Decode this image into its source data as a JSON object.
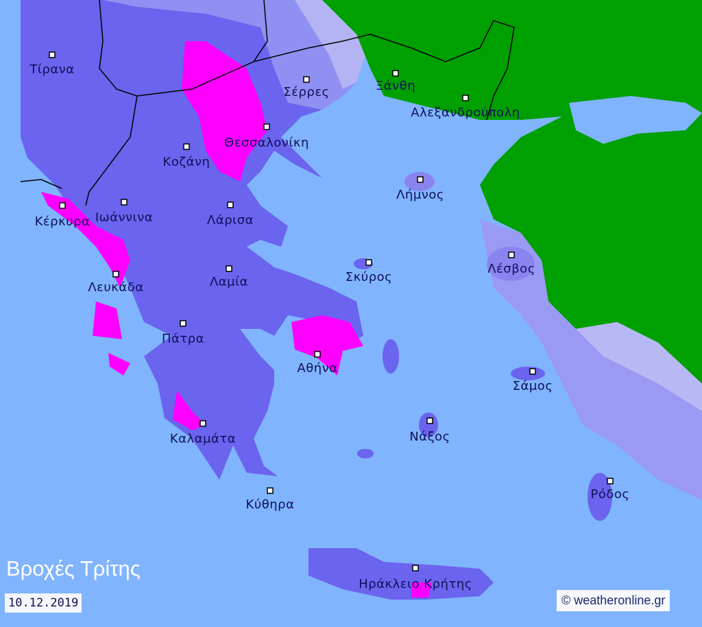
{
  "map": {
    "title": "Βροχές Τρίτης",
    "date": "10.12.2019",
    "credit": "© weatheronline.gr",
    "colors": {
      "sea": "#80b4fe",
      "rain_light": "#9a9af4",
      "rain_moderate": "#6a64ee",
      "rain_heavy": "#ff00ff",
      "outside_area": "#00a000"
    },
    "cities": [
      {
        "name": "Τίρανα"
      },
      {
        "name": "Σέρρες"
      },
      {
        "name": "Ξάνθη"
      },
      {
        "name": "Αλεξανδρούπολη"
      },
      {
        "name": "Θεσσαλονίκη"
      },
      {
        "name": "Κοζάνη"
      },
      {
        "name": "Λήμνος"
      },
      {
        "name": "Κέρκυρα"
      },
      {
        "name": "Ιωάννινα"
      },
      {
        "name": "Λάρισα"
      },
      {
        "name": "Λέσβος"
      },
      {
        "name": "Σκύρος"
      },
      {
        "name": "Λευκάδα"
      },
      {
        "name": "Λαμία"
      },
      {
        "name": "Πάτρα"
      },
      {
        "name": "Αθήνα"
      },
      {
        "name": "Σάμος"
      },
      {
        "name": "Νάξος"
      },
      {
        "name": "Καλαμάτα"
      },
      {
        "name": "Ρόδος"
      },
      {
        "name": "Κύθηρα"
      },
      {
        "name": "Ηράκλειο Κρήτης"
      }
    ]
  }
}
